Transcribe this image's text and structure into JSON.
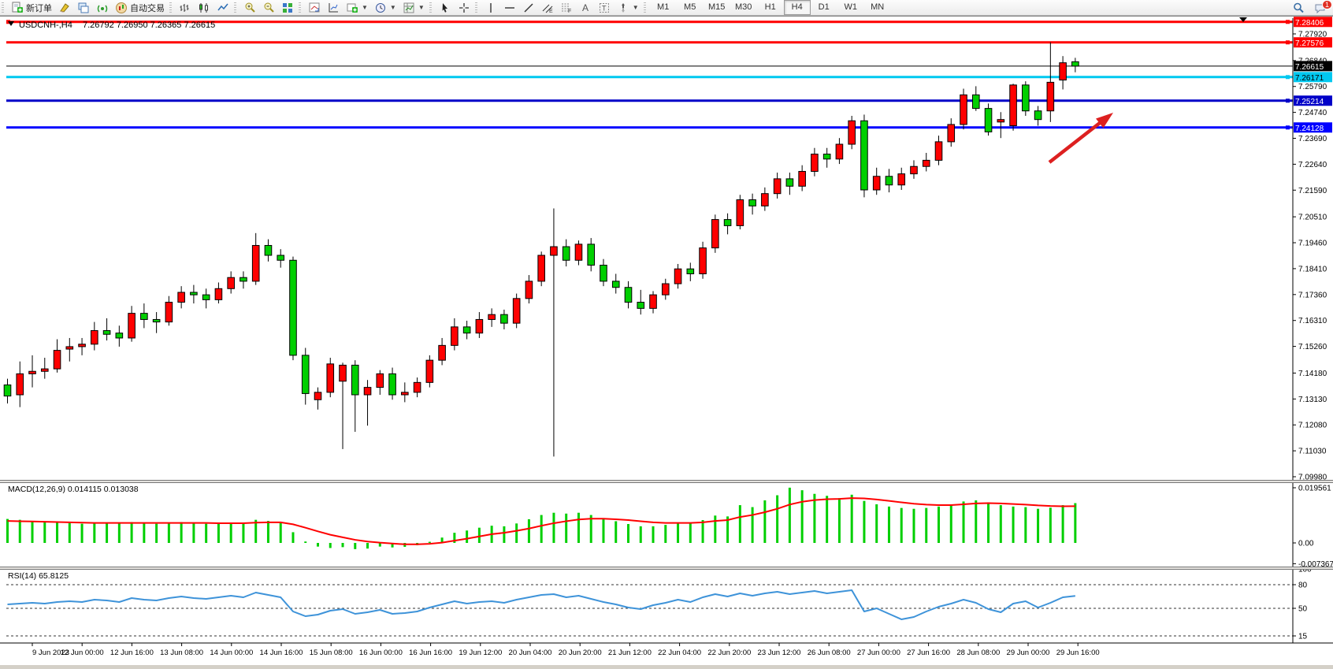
{
  "toolbar": {
    "groups": [
      {
        "name": "standard",
        "items": [
          {
            "name": "new-order-button",
            "icon": "doc-plus",
            "label": "新订单"
          },
          {
            "name": "highlighter-button",
            "icon": "highlighter"
          },
          {
            "name": "profiles-button",
            "icon": "cascade"
          },
          {
            "name": "signals-button",
            "icon": "signal"
          },
          {
            "name": "autotrade-button",
            "icon": "autotrade",
            "label": "自动交易"
          }
        ]
      },
      {
        "name": "chart-type",
        "items": [
          {
            "name": "bar-chart-button",
            "icon": "chart-bars"
          },
          {
            "name": "candlestick-chart-button",
            "icon": "chart-candles"
          },
          {
            "name": "line-chart-button",
            "icon": "chart-line"
          }
        ]
      },
      {
        "name": "zoom",
        "items": [
          {
            "name": "zoom-in-button",
            "icon": "zoom-in"
          },
          {
            "name": "zoom-out-button",
            "icon": "zoom-out"
          },
          {
            "name": "tile-windows-button",
            "icon": "tile"
          }
        ]
      },
      {
        "name": "chart-tools",
        "items": [
          {
            "name": "auto-scroll-button",
            "icon": "chart-arrow"
          },
          {
            "name": "chart-shift-button",
            "icon": "chart-axes"
          },
          {
            "name": "add-indicator-button",
            "icon": "plus-green",
            "caret": true
          },
          {
            "name": "periods-button",
            "icon": "clock",
            "caret": true
          },
          {
            "name": "templates-button",
            "icon": "template",
            "caret": true
          }
        ]
      },
      {
        "name": "cursor-tools",
        "items": [
          {
            "name": "cursor-button",
            "icon": "cursor"
          },
          {
            "name": "crosshair-button",
            "icon": "crosshair"
          }
        ]
      },
      {
        "name": "draw-tools",
        "items": [
          {
            "name": "vertical-line-button",
            "icon": "vline"
          },
          {
            "name": "horizontal-line-button",
            "icon": "hline"
          },
          {
            "name": "trendline-button",
            "icon": "trendline"
          },
          {
            "name": "equidistant-channel-button",
            "icon": "channel"
          },
          {
            "name": "fibonacci-button",
            "icon": "fibo"
          },
          {
            "name": "text-button",
            "icon": "text"
          },
          {
            "name": "text-label-button",
            "icon": "textlabel"
          },
          {
            "name": "arrows-button",
            "icon": "arrows-tool",
            "caret": true
          }
        ]
      }
    ],
    "timeframes": [
      "M1",
      "M5",
      "M15",
      "M30",
      "H1",
      "H4",
      "D1",
      "W1",
      "MN"
    ],
    "active_timeframe": "H4",
    "notification_count": "1"
  },
  "chart": {
    "title": {
      "symbol_period": "USDCNH-,H4",
      "ohlc": "7.26792 7.26950 7.26365 7.26615"
    },
    "macd_label": "MACD(12,26,9) 0.014115 0.013038",
    "rsi_label": "RSI(14) 65.8125",
    "price_axis": {
      "ticks": [
        "7.27920",
        "7.26840",
        "7.25790",
        "7.24740",
        "7.23690",
        "7.22640",
        "7.21590",
        "7.20510",
        "7.19460",
        "7.18410",
        "7.17360",
        "7.16310",
        "7.15260",
        "7.14180",
        "7.13130",
        "7.12080",
        "7.11030",
        "7.09980"
      ],
      "badges": [
        {
          "label": "7.28406",
          "price": 7.28406,
          "bg": "#ff0000",
          "fg": "#ffffff"
        },
        {
          "label": "7.27576",
          "price": 7.27576,
          "bg": "#ff0000",
          "fg": "#ffffff"
        },
        {
          "label": "7.26615",
          "price": 7.26615,
          "bg": "#000000",
          "fg": "#ffffff"
        },
        {
          "label": "7.26171",
          "price": 7.26171,
          "bg": "#00c8f0",
          "fg": "#000000"
        },
        {
          "label": "7.25214",
          "price": 7.25214,
          "bg": "#0000c8",
          "fg": "#ffffff"
        },
        {
          "label": "7.24128",
          "price": 7.24128,
          "bg": "#0000ff",
          "fg": "#ffffff"
        }
      ]
    },
    "macd_axis": [
      {
        "label": "0.019561",
        "value": 0.019561
      },
      {
        "label": "0.00",
        "value": 0
      },
      {
        "label": "-0.007367",
        "value": -0.007367
      }
    ],
    "rsi_axis": [
      {
        "label": "100",
        "value": 100,
        "line": false
      },
      {
        "label": "80",
        "value": 80,
        "line": true
      },
      {
        "label": "50",
        "value": 50,
        "line": true
      },
      {
        "label": "15",
        "value": 15,
        "line": true
      }
    ],
    "time_axis": [
      "9 Jun 2023",
      "12 Jun 00:00",
      "12 Jun 16:00",
      "13 Jun 08:00",
      "14 Jun 00:00",
      "14 Jun 16:00",
      "15 Jun 08:00",
      "16 Jun 00:00",
      "16 Jun 16:00",
      "19 Jun 12:00",
      "20 Jun 04:00",
      "20 Jun 20:00",
      "21 Jun 12:00",
      "22 Jun 04:00",
      "22 Jun 20:00",
      "23 Jun 12:00",
      "26 Jun 08:00",
      "27 Jun 00:00",
      "27 Jun 16:00",
      "28 Jun 08:00",
      "29 Jun 00:00",
      "29 Jun 16:00"
    ]
  },
  "chart_data": {
    "type": "candlestick",
    "symbol": "USDCNH-",
    "period": "H4",
    "current_bar": {
      "open": 7.26792,
      "high": 7.2695,
      "low": 7.26365,
      "close": 7.26615
    },
    "up_color": "#ff0000",
    "down_color": "#00cf00",
    "price_range": [
      7.0998,
      7.285
    ],
    "horizontal_lines": [
      {
        "price": 7.28406,
        "color": "#ff0000",
        "thickness": 3
      },
      {
        "price": 7.27576,
        "color": "#ff0000",
        "thickness": 3
      },
      {
        "price": 7.26615,
        "color": "#000000",
        "thickness": 1,
        "role": "bid-line"
      },
      {
        "price": 7.26171,
        "color": "#00c8f0",
        "thickness": 3
      },
      {
        "price": 7.25214,
        "color": "#0000c8",
        "thickness": 3
      },
      {
        "price": 7.24128,
        "color": "#0000ff",
        "thickness": 3
      }
    ],
    "arrow_annotation": {
      "color": "#dd2020",
      "from_price": 7.228,
      "to_price": 7.246
    },
    "candles": [
      [
        7.137,
        7.1395,
        7.1295,
        7.1325
      ],
      [
        7.133,
        7.1465,
        7.128,
        7.1415
      ],
      [
        7.1415,
        7.149,
        7.136,
        7.1425
      ],
      [
        7.1425,
        7.148,
        7.1395,
        7.1435
      ],
      [
        7.1435,
        7.1555,
        7.142,
        7.151
      ],
      [
        7.1515,
        7.156,
        7.1465,
        7.1525
      ],
      [
        7.1525,
        7.156,
        7.149,
        7.1535
      ],
      [
        7.1535,
        7.1625,
        7.151,
        7.159
      ],
      [
        7.159,
        7.164,
        7.155,
        7.1575
      ],
      [
        7.158,
        7.161,
        7.1525,
        7.156
      ],
      [
        7.156,
        7.169,
        7.1545,
        7.166
      ],
      [
        7.166,
        7.17,
        7.16,
        7.1635
      ],
      [
        7.1635,
        7.1665,
        7.158,
        7.1625
      ],
      [
        7.1625,
        7.173,
        7.161,
        7.1705
      ],
      [
        7.1705,
        7.177,
        7.168,
        7.1745
      ],
      [
        7.1745,
        7.1775,
        7.17,
        7.1735
      ],
      [
        7.1735,
        7.176,
        7.168,
        7.1715
      ],
      [
        7.1715,
        7.1785,
        7.17,
        7.176
      ],
      [
        7.176,
        7.183,
        7.174,
        7.1805
      ],
      [
        7.1805,
        7.183,
        7.176,
        7.179
      ],
      [
        7.179,
        7.1985,
        7.1775,
        7.1935
      ],
      [
        7.1935,
        7.196,
        7.187,
        7.1895
      ],
      [
        7.1895,
        7.192,
        7.1845,
        7.1875
      ],
      [
        7.1875,
        7.189,
        7.147,
        7.149
      ],
      [
        7.149,
        7.152,
        7.129,
        7.1335
      ],
      [
        7.131,
        7.136,
        7.127,
        7.134
      ],
      [
        7.134,
        7.148,
        7.132,
        7.1455
      ],
      [
        7.1385,
        7.146,
        7.111,
        7.145
      ],
      [
        7.145,
        7.147,
        7.118,
        7.133
      ],
      [
        7.133,
        7.139,
        7.1205,
        7.136
      ],
      [
        7.136,
        7.143,
        7.133,
        7.1415
      ],
      [
        7.1415,
        7.144,
        7.131,
        7.133
      ],
      [
        7.133,
        7.138,
        7.13,
        7.134
      ],
      [
        7.134,
        7.14,
        7.132,
        7.138
      ],
      [
        7.138,
        7.149,
        7.136,
        7.147
      ],
      [
        7.147,
        7.156,
        7.145,
        7.153
      ],
      [
        7.153,
        7.164,
        7.151,
        7.1605
      ],
      [
        7.1605,
        7.163,
        7.1555,
        7.158
      ],
      [
        7.158,
        7.1665,
        7.156,
        7.1635
      ],
      [
        7.1635,
        7.168,
        7.1605,
        7.1655
      ],
      [
        7.1655,
        7.1675,
        7.1595,
        7.162
      ],
      [
        7.162,
        7.174,
        7.16,
        7.172
      ],
      [
        7.172,
        7.1815,
        7.17,
        7.179
      ],
      [
        7.179,
        7.191,
        7.177,
        7.1895
      ],
      [
        7.1895,
        7.2085,
        7.108,
        7.193
      ],
      [
        7.193,
        7.196,
        7.185,
        7.1875
      ],
      [
        7.1875,
        7.1955,
        7.1855,
        7.194
      ],
      [
        7.194,
        7.1965,
        7.183,
        7.1855
      ],
      [
        7.1855,
        7.188,
        7.177,
        7.179
      ],
      [
        7.179,
        7.182,
        7.174,
        7.1765
      ],
      [
        7.1765,
        7.179,
        7.168,
        7.1705
      ],
      [
        7.1705,
        7.1755,
        7.1655,
        7.168
      ],
      [
        7.168,
        7.175,
        7.166,
        7.1735
      ],
      [
        7.1735,
        7.18,
        7.1715,
        7.178
      ],
      [
        7.178,
        7.186,
        7.176,
        7.184
      ],
      [
        7.184,
        7.1865,
        7.179,
        7.182
      ],
      [
        7.182,
        7.195,
        7.18,
        7.1925
      ],
      [
        7.1925,
        7.206,
        7.1905,
        7.204
      ],
      [
        7.204,
        7.2065,
        7.198,
        7.2015
      ],
      [
        7.2015,
        7.214,
        7.2,
        7.212
      ],
      [
        7.212,
        7.2145,
        7.206,
        7.2095
      ],
      [
        7.2095,
        7.217,
        7.2075,
        7.2145
      ],
      [
        7.2145,
        7.223,
        7.2125,
        7.2205
      ],
      [
        7.2205,
        7.223,
        7.214,
        7.2175
      ],
      [
        7.2175,
        7.226,
        7.2155,
        7.2235
      ],
      [
        7.2235,
        7.233,
        7.2215,
        7.2305
      ],
      [
        7.2305,
        7.233,
        7.225,
        7.2285
      ],
      [
        7.2285,
        7.237,
        7.2265,
        7.2345
      ],
      [
        7.2345,
        7.246,
        7.2325,
        7.244
      ],
      [
        7.244,
        7.2465,
        7.213,
        7.216
      ],
      [
        7.216,
        7.225,
        7.214,
        7.2215
      ],
      [
        7.2215,
        7.2245,
        7.215,
        7.218
      ],
      [
        7.218,
        7.225,
        7.216,
        7.2225
      ],
      [
        7.2225,
        7.228,
        7.2205,
        7.2255
      ],
      [
        7.2255,
        7.231,
        7.2235,
        7.228
      ],
      [
        7.228,
        7.238,
        7.226,
        7.2355
      ],
      [
        7.2355,
        7.245,
        7.2335,
        7.2425
      ],
      [
        7.2425,
        7.257,
        7.2405,
        7.2545
      ],
      [
        7.2545,
        7.258,
        7.248,
        7.249
      ],
      [
        7.249,
        7.251,
        7.238,
        7.2395
      ],
      [
        7.2435,
        7.2475,
        7.237,
        7.2445
      ],
      [
        7.242,
        7.259,
        7.24,
        7.2585
      ],
      [
        7.2585,
        7.26,
        7.246,
        7.248
      ],
      [
        7.248,
        7.25,
        7.242,
        7.2445
      ],
      [
        7.248,
        7.2758,
        7.2435,
        7.2596
      ],
      [
        7.2605,
        7.2702,
        7.2567,
        7.2675
      ],
      [
        7.26792,
        7.2695,
        7.26365,
        7.26615
      ]
    ],
    "macd": {
      "params": "12,26,9",
      "current_macd": 0.014115,
      "current_signal": 0.013038,
      "range": [
        -0.007367,
        0.019561
      ],
      "histogram_color": "#00cf00",
      "signal_color": "#ff0000",
      "histogram": [
        0.0085,
        0.0082,
        0.0078,
        0.0074,
        0.0072,
        0.007,
        0.0068,
        0.007,
        0.0072,
        0.007,
        0.0074,
        0.0072,
        0.0068,
        0.007,
        0.0074,
        0.0072,
        0.0068,
        0.0068,
        0.0072,
        0.007,
        0.0082,
        0.0078,
        0.007,
        0.0038,
        0.0005,
        -0.0013,
        -0.0018,
        -0.0015,
        -0.0022,
        -0.002,
        -0.0013,
        -0.0016,
        -0.0014,
        -0.0008,
        0.0004,
        0.0019,
        0.0036,
        0.0044,
        0.0054,
        0.0061,
        0.0059,
        0.0069,
        0.0084,
        0.0099,
        0.0107,
        0.0104,
        0.0107,
        0.0099,
        0.0087,
        0.0077,
        0.0067,
        0.0059,
        0.0059,
        0.0064,
        0.0071,
        0.0069,
        0.0081,
        0.0097,
        0.0094,
        0.0134,
        0.0127,
        0.0151,
        0.0169,
        0.0196,
        0.0187,
        0.0174,
        0.0167,
        0.0159,
        0.0171,
        0.0149,
        0.0137,
        0.0129,
        0.0124,
        0.0121,
        0.0124,
        0.0129,
        0.0135,
        0.0147,
        0.0151,
        0.0144,
        0.0134,
        0.0129,
        0.0127,
        0.0121,
        0.0125,
        0.0134,
        0.014115
      ],
      "signal": [
        0.0078,
        0.0077,
        0.0076,
        0.0075,
        0.0074,
        0.0073,
        0.0072,
        0.0071,
        0.0071,
        0.0071,
        0.0071,
        0.0071,
        0.0071,
        0.0071,
        0.0071,
        0.0071,
        0.0071,
        0.007,
        0.007,
        0.007,
        0.0072,
        0.0073,
        0.0073,
        0.0066,
        0.0054,
        0.0041,
        0.0029,
        0.002,
        0.0011,
        0.0005,
        0.0001,
        -0.0002,
        -0.0005,
        -0.0005,
        -0.0003,
        0.0001,
        0.0008,
        0.0015,
        0.0023,
        0.0031,
        0.0036,
        0.0043,
        0.0051,
        0.0061,
        0.007,
        0.0077,
        0.0083,
        0.0086,
        0.0086,
        0.0084,
        0.0081,
        0.0077,
        0.0073,
        0.0071,
        0.0071,
        0.0071,
        0.0073,
        0.0078,
        0.0081,
        0.0092,
        0.0099,
        0.0109,
        0.0121,
        0.0136,
        0.0146,
        0.0152,
        0.0155,
        0.0156,
        0.0159,
        0.0158,
        0.0154,
        0.0149,
        0.0144,
        0.0139,
        0.0136,
        0.0134,
        0.0134,
        0.0137,
        0.014,
        0.0141,
        0.014,
        0.0138,
        0.0136,
        0.0133,
        0.0131,
        0.013,
        0.013038
      ]
    },
    "rsi": {
      "period": 14,
      "current": 65.8125,
      "levels": [
        80,
        50,
        15
      ],
      "line_color": "#3e93d9",
      "values": [
        55,
        56,
        57,
        56,
        58,
        59,
        58,
        61,
        60,
        58,
        63,
        61,
        60,
        63,
        65,
        63,
        62,
        64,
        66,
        64,
        70,
        67,
        64,
        46,
        40,
        42,
        47,
        49,
        43,
        45,
        48,
        43,
        44,
        46,
        51,
        55,
        59,
        56,
        58,
        59,
        57,
        61,
        64,
        67,
        68,
        64,
        66,
        62,
        58,
        55,
        51,
        49,
        54,
        57,
        61,
        58,
        64,
        68,
        65,
        69,
        66,
        69,
        71,
        68,
        70,
        72,
        69,
        71,
        73,
        46,
        50,
        43,
        36,
        39,
        46,
        52,
        56,
        61,
        57,
        49,
        45,
        56,
        59,
        51,
        57,
        64,
        65.8
      ]
    }
  }
}
